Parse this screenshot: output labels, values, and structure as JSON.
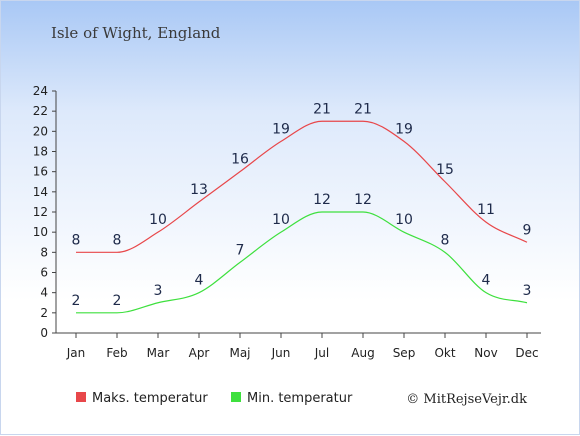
{
  "chart_data": {
    "type": "line",
    "title": "Isle of Wight, England",
    "categories": [
      "Jan",
      "Feb",
      "Mar",
      "Apr",
      "Maj",
      "Jun",
      "Jul",
      "Aug",
      "Sep",
      "Okt",
      "Nov",
      "Dec"
    ],
    "ylim": [
      0,
      24
    ],
    "yticks": [
      0,
      2,
      4,
      6,
      8,
      10,
      12,
      14,
      16,
      18,
      20,
      22,
      24
    ],
    "grid": false,
    "legend_position": "bottom",
    "series": [
      {
        "name": "Maks. temperatur",
        "color": "#e8474a",
        "values": [
          8,
          8,
          10,
          13,
          16,
          19,
          21,
          21,
          19,
          15,
          11,
          9
        ]
      },
      {
        "name": "Min. temperatur",
        "color": "#3ee03e",
        "values": [
          2,
          2,
          3,
          4,
          7,
          10,
          12,
          12,
          10,
          8,
          4,
          3
        ]
      }
    ]
  },
  "copyright": "© MitRejseVejr.dk"
}
